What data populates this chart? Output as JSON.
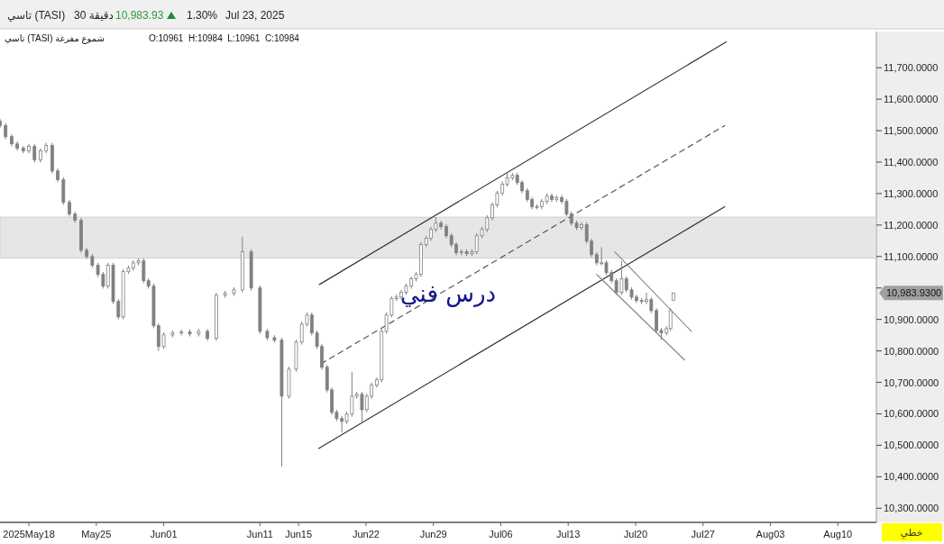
{
  "chart_data": {
    "type": "candlestick",
    "title": "تاسي (TASI)",
    "color": "#808080",
    "x": [
      "2025-05-15T00:00",
      "2025-05-15T14:00",
      "2025-05-16T05:00",
      "2025-05-16T19:00",
      "2025-05-17T10:00",
      "2025-05-18T00:00",
      "2025-05-18T14:00",
      "2025-05-19T05:00",
      "2025-05-19T19:00",
      "2025-05-20T10:00",
      "2025-05-21T00:00",
      "2025-05-21T14:00",
      "2025-05-22T05:00",
      "2025-05-22T19:00",
      "2025-05-23T10:00",
      "2025-05-24T00:00",
      "2025-05-24T14:00",
      "2025-05-25T04:00",
      "2025-05-25T17:00",
      "2025-05-26T05:00",
      "2025-05-26T18:00",
      "2025-05-27T07:00",
      "2025-05-27T19:00",
      "2025-05-28T08:00",
      "2025-05-28T20:00",
      "2025-05-29T09:00",
      "2025-05-29T22:00",
      "2025-05-30T10:00",
      "2025-05-30T23:00",
      "2025-05-31T11:00",
      "2025-06-01T00:00",
      "2025-06-01T22:00",
      "2025-06-02T20:00",
      "2025-06-03T17:00",
      "2025-06-04T15:00",
      "2025-06-05T13:00",
      "2025-06-06T11:00",
      "2025-06-07T09:00",
      "2025-06-08T07:00",
      "2025-06-09T04:00",
      "2025-06-10T02:00",
      "2025-06-11T00:00",
      "2025-06-11T18:00",
      "2025-06-12T12:00",
      "2025-06-13T06:00",
      "2025-06-14T00:00",
      "2025-06-14T18:00",
      "2025-06-15T08:00",
      "2025-06-15T21:00",
      "2025-06-16T09:00",
      "2025-06-16T22:00",
      "2025-06-17T10:00",
      "2025-06-17T23:00",
      "2025-06-18T11:00",
      "2025-06-18T23:00",
      "2025-06-19T12:00",
      "2025-06-20T00:00",
      "2025-06-20T13:00",
      "2025-06-21T01:00",
      "2025-06-21T14:00",
      "2025-06-22T02:00",
      "2025-06-22T14:00",
      "2025-06-23T03:00",
      "2025-06-23T15:00",
      "2025-06-24T03:00",
      "2025-06-24T16:00",
      "2025-06-25T04:00",
      "2025-06-25T16:00",
      "2025-06-26T04:00",
      "2025-06-26T17:00",
      "2025-06-27T05:00",
      "2025-06-27T17:00",
      "2025-06-28T06:00",
      "2025-06-28T18:00",
      "2025-06-29T06:00",
      "2025-06-29T19:00",
      "2025-06-30T08:00",
      "2025-06-30T21:00",
      "2025-07-01T09:00",
      "2025-07-01T22:00",
      "2025-07-02T11:00",
      "2025-07-03T00:00",
      "2025-07-03T12:00",
      "2025-07-04T01:00",
      "2025-07-04T14:00",
      "2025-07-05T03:00",
      "2025-07-05T15:00",
      "2025-07-06T04:00",
      "2025-07-06T16:00",
      "2025-07-07T05:00",
      "2025-07-07T17:00",
      "2025-07-08T05:00",
      "2025-07-08T18:00",
      "2025-07-09T06:00",
      "2025-07-09T18:00",
      "2025-07-10T06:00",
      "2025-07-10T19:00",
      "2025-07-11T07:00",
      "2025-07-11T19:00",
      "2025-07-12T08:00",
      "2025-07-12T20:00",
      "2025-07-13T08:00",
      "2025-07-13T21:00",
      "2025-07-14T09:00",
      "2025-07-14T22:00",
      "2025-07-15T10:00",
      "2025-07-15T23:00",
      "2025-07-16T11:00",
      "2025-07-16T23:00",
      "2025-07-17T12:00",
      "2025-07-18T00:00",
      "2025-07-18T13:00",
      "2025-07-19T01:00",
      "2025-07-19T14:00",
      "2025-07-20T02:00",
      "2025-07-20T15:00",
      "2025-07-21T03:00",
      "2025-07-21T15:00",
      "2025-07-22T04:00",
      "2025-07-22T16:00",
      "2025-07-23T05:00",
      "2025-07-23T15:00",
      "2025-07-23T22:00"
    ],
    "ohlc": [
      [
        11530,
        11538,
        11508,
        11516
      ],
      [
        11516,
        11524,
        11473,
        11481
      ],
      [
        11481,
        11489,
        11450,
        11458
      ],
      [
        11458,
        11466,
        11436,
        11444
      ],
      [
        11444,
        11452,
        11428,
        11436
      ],
      [
        11436,
        11458,
        11428,
        11450
      ],
      [
        11450,
        11458,
        11399,
        11407
      ],
      [
        11407,
        11444,
        11399,
        11436
      ],
      [
        11436,
        11461,
        11428,
        11453
      ],
      [
        11453,
        11461,
        11364,
        11372
      ],
      [
        11372,
        11380,
        11336,
        11344
      ],
      [
        11344,
        11352,
        11264,
        11272
      ],
      [
        11272,
        11280,
        11227,
        11235
      ],
      [
        11235,
        11243,
        11207,
        11215
      ],
      [
        11215,
        11223,
        11112,
        11120
      ],
      [
        11120,
        11128,
        11092,
        11100
      ],
      [
        11100,
        11108,
        11064,
        11072
      ],
      [
        11072,
        11080,
        11035,
        11043
      ],
      [
        11043,
        11051,
        10998,
        11006
      ],
      [
        11006,
        11080,
        10998,
        11072
      ],
      [
        11072,
        11080,
        10949,
        10957
      ],
      [
        10957,
        10965,
        10900,
        10908
      ],
      [
        10908,
        11060,
        10900,
        11052
      ],
      [
        11052,
        11071,
        11044,
        11063
      ],
      [
        11063,
        11088,
        11055,
        11080
      ],
      [
        11080,
        11094,
        11072,
        11086
      ],
      [
        11086,
        11094,
        11015,
        11023
      ],
      [
        11023,
        11031,
        10998,
        11006
      ],
      [
        11006,
        11014,
        10872,
        10880
      ],
      [
        10880,
        10888,
        10800,
        10814
      ],
      [
        10814,
        10859,
        10806,
        10851
      ],
      [
        10851,
        10865,
        10843,
        10857
      ],
      [
        10857,
        10868,
        10849,
        10860
      ],
      [
        10860,
        10868,
        10846,
        10854
      ],
      [
        10854,
        10870,
        10846,
        10862
      ],
      [
        10862,
        10870,
        10832,
        10840
      ],
      [
        10840,
        10985,
        10832,
        10977
      ],
      [
        10977,
        10991,
        10969,
        10983
      ],
      [
        10983,
        11002,
        10975,
        10994
      ],
      [
        10994,
        11163,
        10986,
        11115
      ],
      [
        11115,
        11123,
        10992,
        11000
      ],
      [
        11000,
        11008,
        10854,
        10862
      ],
      [
        10862,
        10870,
        10834,
        10842
      ],
      [
        10842,
        10850,
        10826,
        10834
      ],
      [
        10834,
        10842,
        10433,
        10656
      ],
      [
        10656,
        10750,
        10648,
        10742
      ],
      [
        10742,
        10836,
        10734,
        10828
      ],
      [
        10828,
        10893,
        10820,
        10885
      ],
      [
        10885,
        10922,
        10877,
        10914
      ],
      [
        10914,
        10922,
        10849,
        10857
      ],
      [
        10857,
        10865,
        10806,
        10814
      ],
      [
        10814,
        10822,
        10740,
        10748
      ],
      [
        10748,
        10756,
        10668,
        10676
      ],
      [
        10676,
        10684,
        10597,
        10605
      ],
      [
        10605,
        10613,
        10577,
        10585
      ],
      [
        10585,
        10593,
        10540,
        10576
      ],
      [
        10576,
        10607,
        10568,
        10599
      ],
      [
        10599,
        10734,
        10591,
        10656
      ],
      [
        10656,
        10670,
        10648,
        10662
      ],
      [
        10662,
        10670,
        10575,
        10613
      ],
      [
        10613,
        10664,
        10605,
        10656
      ],
      [
        10656,
        10699,
        10648,
        10691
      ],
      [
        10691,
        10716,
        10683,
        10708
      ],
      [
        10708,
        10870,
        10700,
        10862
      ],
      [
        10862,
        10922,
        10854,
        10914
      ],
      [
        10914,
        10974,
        10906,
        10966
      ],
      [
        10966,
        10979,
        10958,
        10971
      ],
      [
        10971,
        10994,
        10963,
        10986
      ],
      [
        10986,
        11014,
        10978,
        11006
      ],
      [
        11006,
        11037,
        10998,
        11029
      ],
      [
        11029,
        11051,
        11021,
        11043
      ],
      [
        11043,
        11146,
        11035,
        11138
      ],
      [
        11138,
        11166,
        11130,
        11158
      ],
      [
        11158,
        11194,
        11150,
        11186
      ],
      [
        11186,
        11225,
        11178,
        11206
      ],
      [
        11206,
        11214,
        11187,
        11195
      ],
      [
        11195,
        11203,
        11158,
        11166
      ],
      [
        11166,
        11174,
        11130,
        11138
      ],
      [
        11138,
        11146,
        11104,
        11112
      ],
      [
        11112,
        11123,
        11104,
        11115
      ],
      [
        11115,
        11123,
        11101,
        11109
      ],
      [
        11109,
        11123,
        11101,
        11115
      ],
      [
        11115,
        11174,
        11107,
        11166
      ],
      [
        11166,
        11194,
        11158,
        11186
      ],
      [
        11186,
        11231,
        11178,
        11223
      ],
      [
        11223,
        11272,
        11215,
        11264
      ],
      [
        11264,
        11309,
        11256,
        11301
      ],
      [
        11301,
        11338,
        11293,
        11330
      ],
      [
        11330,
        11367,
        11322,
        11350
      ],
      [
        11350,
        11366,
        11342,
        11358
      ],
      [
        11358,
        11366,
        11327,
        11335
      ],
      [
        11335,
        11343,
        11301,
        11309
      ],
      [
        11309,
        11317,
        11273,
        11281
      ],
      [
        11281,
        11289,
        11250,
        11258
      ],
      [
        11258,
        11266,
        11250,
        11258
      ],
      [
        11258,
        11283,
        11250,
        11275
      ],
      [
        11275,
        11300,
        11267,
        11292
      ],
      [
        11292,
        11300,
        11273,
        11281
      ],
      [
        11281,
        11295,
        11273,
        11287
      ],
      [
        11287,
        11295,
        11267,
        11275
      ],
      [
        11275,
        11283,
        11227,
        11235
      ],
      [
        11235,
        11243,
        11198,
        11206
      ],
      [
        11206,
        11214,
        11184,
        11192
      ],
      [
        11192,
        11209,
        11184,
        11201
      ],
      [
        11201,
        11209,
        11141,
        11149
      ],
      [
        11149,
        11157,
        11098,
        11106
      ],
      [
        11106,
        11114,
        11072,
        11080
      ],
      [
        11080,
        11130,
        11072,
        11080
      ],
      [
        11080,
        11088,
        11041,
        11049
      ],
      [
        11049,
        11057,
        11015,
        11023
      ],
      [
        11023,
        11031,
        10978,
        10986
      ],
      [
        10986,
        11086,
        10978,
        11029
      ],
      [
        11029,
        11037,
        10986,
        10994
      ],
      [
        10994,
        11002,
        10963,
        10971
      ],
      [
        10971,
        10979,
        10952,
        10960
      ],
      [
        10960,
        10968,
        10949,
        10957
      ],
      [
        10957,
        10985,
        10949,
        10963
      ],
      [
        10963,
        10971,
        10920,
        10928
      ],
      [
        10928,
        10936,
        10857,
        10865
      ],
      [
        10865,
        10873,
        10835,
        10857
      ],
      [
        10857,
        10879,
        10849,
        10871
      ],
      [
        10871,
        10936,
        10863,
        10928
      ],
      [
        10961,
        10984,
        10961,
        10984
      ]
    ],
    "series": [
      {
        "type": "line",
        "x": [
          "2025-06-17T04:00",
          "2025-07-29T10:00"
        ],
        "values": [
          11011,
          11782
        ],
        "color": "#333333",
        "line_style": "solid"
      },
      {
        "type": "line",
        "x": [
          "2025-06-17T08:00",
          "2025-07-29T06:00"
        ],
        "values": [
          10759,
          11516
        ],
        "color": "#555555",
        "line_style": "dashed"
      },
      {
        "type": "line",
        "x": [
          "2025-06-17T02:00",
          "2025-07-29T06:00"
        ],
        "values": [
          10490,
          11258
        ],
        "color": "#333333",
        "line_style": "solid"
      },
      {
        "type": "line",
        "x": [
          "2025-07-17T20:00",
          "2025-07-25T19:00"
        ],
        "values": [
          11115,
          10862
        ],
        "color": "#888888",
        "line_style": "solid"
      },
      {
        "type": "line",
        "x": [
          "2025-07-15T23:00",
          "2025-07-25T02:00"
        ],
        "values": [
          11043,
          10771
        ],
        "color": "#888888",
        "line_style": "solid"
      }
    ],
    "bands": [
      {
        "axis": "y",
        "from": 11095,
        "to": 11225,
        "color": "#e0e0e3"
      }
    ],
    "xlim": [
      "2025-05-15",
      "2025-08-14"
    ],
    "xticks": [
      {
        "value": "2025-05-18",
        "label": "2025May18"
      },
      {
        "value": "2025-05-25",
        "label": "May25"
      },
      {
        "value": "2025-06-01",
        "label": "Jun01"
      },
      {
        "value": "2025-06-11",
        "label": "Jun11"
      },
      {
        "value": "2025-06-15",
        "label": "Jun15"
      },
      {
        "value": "2025-06-22",
        "label": "Jun22"
      },
      {
        "value": "2025-06-29",
        "label": "Jun29"
      },
      {
        "value": "2025-07-06",
        "label": "Jul06"
      },
      {
        "value": "2025-07-13",
        "label": "Jul13"
      },
      {
        "value": "2025-07-20",
        "label": "Jul20"
      },
      {
        "value": "2025-07-27",
        "label": "Jul27"
      },
      {
        "value": "2025-08-03",
        "label": "Aug03"
      },
      {
        "value": "2025-08-10",
        "label": "Aug10"
      }
    ],
    "ylim": [
      10255,
      11815
    ],
    "yticks": [
      {
        "value": 10300,
        "label": "10,300.0000"
      },
      {
        "value": 10400,
        "label": "10,400.0000"
      },
      {
        "value": 10500,
        "label": "10,500.0000"
      },
      {
        "value": 10600,
        "label": "10,600.0000"
      },
      {
        "value": 10700,
        "label": "10,700.0000"
      },
      {
        "value": 10800,
        "label": "10,800.0000"
      },
      {
        "value": 10900,
        "label": "10,900.0000"
      },
      {
        "value": 11000,
        "label": null
      },
      {
        "value": 11100,
        "label": "11,100.0000"
      },
      {
        "value": 11200,
        "label": "11,200.0000"
      },
      {
        "value": 11300,
        "label": "11,300.0000"
      },
      {
        "value": 11400,
        "label": "11,400.0000"
      },
      {
        "value": 11500,
        "label": "11,500.0000"
      },
      {
        "value": 11600,
        "label": "11,600.0000"
      },
      {
        "value": 11700,
        "label": "11,700.0000"
      }
    ],
    "annotations": [
      "30 دقيقة",
      "10,983.93",
      "1.30%",
      "Jul 23, 2025",
      "تاسي (TASI) شموع مفرغة",
      "O:10961  H:10984  L:10961  C:10984",
      "درس فني",
      "10,983.9300",
      "خطي"
    ]
  }
}
